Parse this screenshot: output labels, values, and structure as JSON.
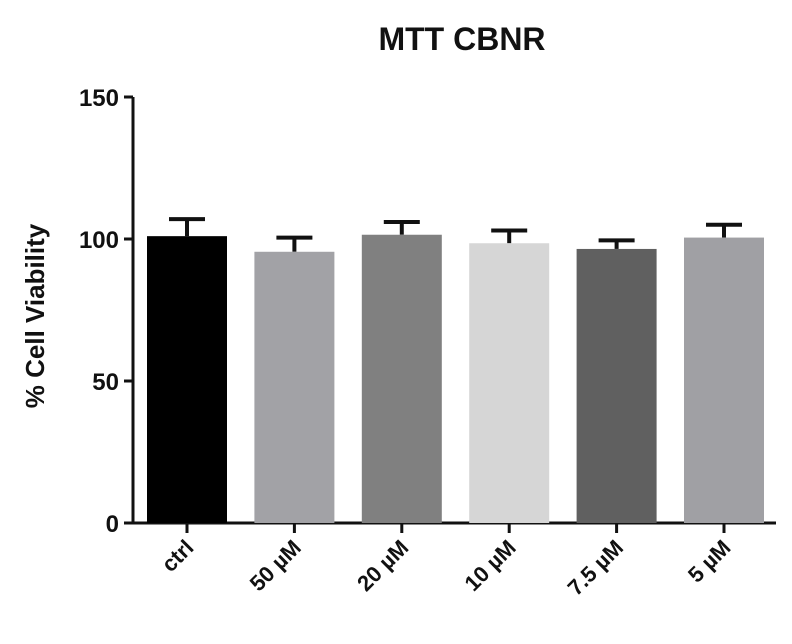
{
  "chart_data": {
    "type": "bar",
    "title": "MTT CBNR",
    "xlabel": "",
    "ylabel": "% Cell Viability",
    "ylim": [
      0,
      150
    ],
    "yticks": [
      0,
      50,
      100,
      150
    ],
    "grid": false,
    "legend": null,
    "categories": [
      "ctrl",
      "50 µM",
      "20 µM",
      "10 µM",
      "7.5 µM",
      "5 µM"
    ],
    "values": [
      101,
      95.5,
      101.5,
      98.5,
      96.5,
      100.5
    ],
    "error_bars": [
      6,
      5,
      4.5,
      4.5,
      3,
      4.5
    ],
    "colors": [
      "#000000",
      "#a2a2a6",
      "#808080",
      "#d6d6d6",
      "#606060",
      "#a0a0a4"
    ]
  }
}
